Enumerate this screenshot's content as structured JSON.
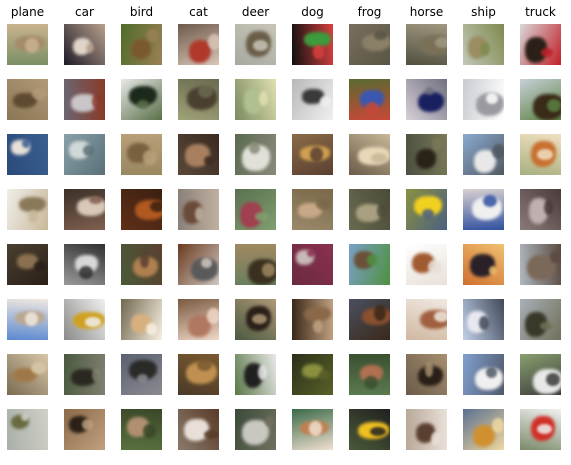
{
  "labels": [
    "plane",
    "car",
    "bird",
    "cat",
    "deer",
    "dog",
    "frog",
    "horse",
    "ship",
    "truck"
  ],
  "thumbnails": [
    [
      {
        "bg": "#7a8f66",
        "fg": "#a58a6c",
        "acc": "#c9b38f"
      },
      {
        "bg": "#1e1a28",
        "fg": "#e0d4c8",
        "acc": "#b7a08c"
      },
      {
        "bg": "#4f6b2a",
        "fg": "#7a5a2c",
        "acc": "#9b8155"
      },
      {
        "bg": "#6e5a4a",
        "fg": "#b0382a",
        "acc": "#d9c6b8"
      },
      {
        "bg": "#a7aaa0",
        "fg": "#6b5e48",
        "acc": "#c8c5b8"
      },
      {
        "bg": "#101010",
        "fg": "#3c9b3c",
        "acc": "#d84040"
      },
      {
        "bg": "#78705f",
        "fg": "#8a8068",
        "acc": "#5a5445"
      },
      {
        "bg": "#505040",
        "fg": "#7a7058",
        "acc": "#a09880"
      },
      {
        "bg": "#c2c8b8",
        "fg": "#9a8e62",
        "acc": "#7e8a4e"
      },
      {
        "bg": "#d8d8d8",
        "fg": "#2a2018",
        "acc": "#c02028"
      }
    ],
    [
      {
        "bg": "#8a7555",
        "fg": "#5e4a30",
        "acc": "#b29a78"
      },
      {
        "bg": "#6a6670",
        "fg": "#c9c5c8",
        "acc": "#8a3a2a"
      },
      {
        "bg": "#e8e8e8",
        "fg": "#1c2a1c",
        "acc": "#5a7048"
      },
      {
        "bg": "#a0a278",
        "fg": "#4a4030",
        "acc": "#6a6a50"
      },
      {
        "bg": "#7a8a60",
        "fg": "#b0c090",
        "acc": "#e0e0b0"
      },
      {
        "bg": "#b8b8b8",
        "fg": "#3a3a3a",
        "acc": "#f0f0f0"
      },
      {
        "bg": "#5a6a30",
        "fg": "#3a58b0",
        "acc": "#c84838"
      },
      {
        "bg": "#d8d0d8",
        "fg": "#182060",
        "acc": "#707080"
      },
      {
        "bg": "#c8ccd0",
        "fg": "#9a9aa0",
        "acc": "#ffffff"
      },
      {
        "bg": "#c8d0d8",
        "fg": "#3a2a18",
        "acc": "#5a8040"
      }
    ],
    [
      {
        "bg": "#2a4a7a",
        "fg": "#e8e0d8",
        "acc": "#3a6090"
      },
      {
        "bg": "#88a0a8",
        "fg": "#d0d8d8",
        "acc": "#5a7078"
      },
      {
        "bg": "#9a8860",
        "fg": "#7a6040",
        "acc": "#b8a078"
      },
      {
        "bg": "#5a4838",
        "fg": "#a88060",
        "acc": "#3a2a20"
      },
      {
        "bg": "#5a6a50",
        "fg": "#e0e0d8",
        "acc": "#8a8a7a"
      },
      {
        "bg": "#8a6a48",
        "fg": "#d0a050",
        "acc": "#5a4030"
      },
      {
        "bg": "#6a5a48",
        "fg": "#e8d8b8",
        "acc": "#c8b898"
      },
      {
        "bg": "#4a5040",
        "fg": "#2a2218",
        "acc": "#7a7858"
      },
      {
        "bg": "#8aaad0",
        "fg": "#e8e8e8",
        "acc": "#505860"
      },
      {
        "bg": "#a8b080",
        "fg": "#c87030",
        "acc": "#f0e0c0"
      }
    ],
    [
      {
        "bg": "#f0eeea",
        "fg": "#8a7a5a",
        "acc": "#c8b898"
      },
      {
        "bg": "#3a3028",
        "fg": "#d8c8b8",
        "acc": "#806050"
      },
      {
        "bg": "#603018",
        "fg": "#b05820",
        "acc": "#3a2010"
      },
      {
        "bg": "#8a8078",
        "fg": "#6a4a38",
        "acc": "#c0b0a0"
      },
      {
        "bg": "#5a7050",
        "fg": "#a04050",
        "acc": "#80a070"
      },
      {
        "bg": "#9a8a6a",
        "fg": "#c8a888",
        "acc": "#7a6848"
      },
      {
        "bg": "#6a6a50",
        "fg": "#a8a080",
        "acc": "#4a4a38"
      },
      {
        "bg": "#8a9040",
        "fg": "#f0d020",
        "acc": "#4a6080"
      },
      {
        "bg": "#d8d0d0",
        "fg": "#f0f0f0",
        "acc": "#3050a0"
      },
      {
        "bg": "#8a7a7a",
        "fg": "#c0b0b0",
        "acc": "#4a3a3a"
      }
    ],
    [
      {
        "bg": "#4a4030",
        "fg": "#8a7050",
        "acc": "#2a2018"
      },
      {
        "bg": "#9a9a9a",
        "fg": "#d8d8d8",
        "acc": "#303030"
      },
      {
        "bg": "#4a5a38",
        "fg": "#b08050",
        "acc": "#5a4030"
      },
      {
        "bg": "#6a3a20",
        "fg": "#5a5a5a",
        "acc": "#d0c8c0"
      },
      {
        "bg": "#6a8060",
        "fg": "#3a3020",
        "acc": "#a08860"
      },
      {
        "bg": "#6a2a40",
        "fg": "#c8b8b8",
        "acc": "#8a3050"
      },
      {
        "bg": "#7aa0c8",
        "fg": "#6a5038",
        "acc": "#509040"
      },
      {
        "bg": "#ffffff",
        "fg": "#a05a30",
        "acc": "#e8e0d8"
      },
      {
        "bg": "#d07030",
        "fg": "#2a2028",
        "acc": "#f0c070"
      },
      {
        "bg": "#b0b8c0",
        "fg": "#7a6858",
        "acc": "#5a4a40"
      }
    ],
    [
      {
        "bg": "#5a88d0",
        "fg": "#b8a890",
        "acc": "#f0e8e0"
      },
      {
        "bg": "#8a8a88",
        "fg": "#d0a020",
        "acc": "#f0f0f0"
      },
      {
        "bg": "#706850",
        "fg": "#d8b080",
        "acc": "#f8f0e0"
      },
      {
        "bg": "#7a5a40",
        "fg": "#b07860",
        "acc": "#f0d8c8"
      },
      {
        "bg": "#4a5a40",
        "fg": "#2a2018",
        "acc": "#b09878"
      },
      {
        "bg": "#3a2818",
        "fg": "#8a6848",
        "acc": "#c0a080"
      },
      {
        "bg": "#4a5060",
        "fg": "#8a5030",
        "acc": "#3a2818"
      },
      {
        "bg": "#d0b8a0",
        "fg": "#a06040",
        "acc": "#f0e8e0"
      },
      {
        "bg": "#c0d0e8",
        "fg": "#e8e8f0",
        "acc": "#404858"
      },
      {
        "bg": "#a8b0b8",
        "fg": "#3a3828",
        "acc": "#707058"
      }
    ],
    [
      {
        "bg": "#7a6a50",
        "fg": "#a07848",
        "acc": "#d8c8a8"
      },
      {
        "bg": "#4a5a40",
        "fg": "#2a2820",
        "acc": "#808070"
      },
      {
        "bg": "#5a6070",
        "fg": "#2a2a28",
        "acc": "#8a8a90"
      },
      {
        "bg": "#4a3a28",
        "fg": "#c09050",
        "acc": "#7a5a30"
      },
      {
        "bg": "#5a7848",
        "fg": "#202020",
        "acc": "#e8e8e8"
      },
      {
        "bg": "#2a3018",
        "fg": "#8a9040",
        "acc": "#5a6028"
      },
      {
        "bg": "#5a7a50",
        "fg": "#b07050",
        "acc": "#3a5030"
      },
      {
        "bg": "#6a5a48",
        "fg": "#2a2018",
        "acc": "#a89070"
      },
      {
        "bg": "#80a0d0",
        "fg": "#f0f0f0",
        "acc": "#505868"
      },
      {
        "bg": "#8aa070",
        "fg": "#e8e8e8",
        "acc": "#3a3a3a"
      }
    ],
    [
      {
        "bg": "#a8b0a8",
        "fg": "#6a6a40",
        "acc": "#d0d0c8"
      },
      {
        "bg": "#8a6a48",
        "fg": "#2a2018",
        "acc": "#c0a080"
      },
      {
        "bg": "#5a7040",
        "fg": "#b09070",
        "acc": "#3a4828"
      },
      {
        "bg": "#8a7a6a",
        "fg": "#e8e0d8",
        "acc": "#5a3a28"
      },
      {
        "bg": "#3a4a38",
        "fg": "#c8c8c0",
        "acc": "#707060"
      },
      {
        "bg": "#3a6a48",
        "fg": "#c08050",
        "acc": "#f0e0d0"
      },
      {
        "bg": "#4a5a38",
        "fg": "#f0c020",
        "acc": "#202020"
      },
      {
        "bg": "#b8a898",
        "fg": "#5a4030",
        "acc": "#e8e0d8"
      },
      {
        "bg": "#5a7090",
        "fg": "#d09030",
        "acc": "#f0d8a0"
      },
      {
        "bg": "#7a8a68",
        "fg": "#d03028",
        "acc": "#f0f0f0"
      }
    ]
  ]
}
